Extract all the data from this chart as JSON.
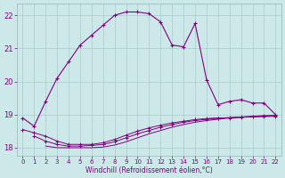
{
  "xlabel": "Windchill (Refroidissement éolien,°C)",
  "background_color": "#cce8e8",
  "grid_color": "#aacccc",
  "line_color": "#800080",
  "xlim": [
    -0.5,
    22.5
  ],
  "ylim": [
    17.75,
    22.35
  ],
  "yticks": [
    18,
    19,
    20,
    21,
    22
  ],
  "xticks": [
    0,
    1,
    2,
    3,
    4,
    5,
    6,
    7,
    8,
    9,
    10,
    11,
    12,
    13,
    14,
    15,
    16,
    17,
    18,
    19,
    20,
    21,
    22
  ],
  "line1_x": [
    0,
    1,
    2,
    3,
    4,
    5,
    6,
    7,
    8,
    9,
    10,
    11,
    12,
    13,
    14,
    15,
    16,
    17,
    18,
    19,
    20,
    21,
    22
  ],
  "line1_y": [
    18.9,
    18.65,
    19.4,
    20.1,
    20.6,
    21.1,
    21.4,
    21.7,
    22.0,
    22.1,
    22.1,
    22.05,
    21.8,
    21.1,
    21.05,
    21.75,
    20.05,
    19.3,
    19.4,
    19.45,
    19.35,
    19.35,
    19.0
  ],
  "line2_x": [
    0,
    1,
    2,
    3,
    4,
    5,
    6,
    7,
    8,
    9,
    10,
    11,
    12,
    13,
    14,
    15,
    16,
    17,
    18,
    19,
    20,
    21,
    22
  ],
  "line2_y": [
    18.55,
    18.45,
    18.35,
    18.2,
    18.1,
    18.1,
    18.1,
    18.15,
    18.25,
    18.38,
    18.5,
    18.6,
    18.68,
    18.75,
    18.8,
    18.85,
    18.88,
    18.9,
    18.9,
    18.92,
    18.93,
    18.94,
    18.95
  ],
  "line3_x": [
    1,
    2,
    3,
    4,
    5,
    6,
    7,
    8,
    9,
    10,
    11,
    12,
    13,
    14,
    15,
    16,
    17,
    18,
    19,
    20,
    21,
    22
  ],
  "line3_y": [
    18.35,
    18.2,
    18.1,
    18.05,
    18.05,
    18.07,
    18.1,
    18.18,
    18.3,
    18.42,
    18.52,
    18.62,
    18.7,
    18.77,
    18.82,
    18.86,
    18.89,
    18.91,
    18.93,
    18.95,
    18.97,
    18.97
  ],
  "line4_x": [
    2,
    3,
    4,
    5,
    6,
    7,
    8,
    9,
    10,
    11,
    12,
    13,
    14,
    15,
    16,
    17,
    18,
    19,
    20,
    21,
    22
  ],
  "line4_y": [
    18.05,
    18.0,
    18.0,
    18.0,
    18.0,
    18.02,
    18.08,
    18.18,
    18.3,
    18.42,
    18.52,
    18.62,
    18.7,
    18.77,
    18.82,
    18.86,
    18.9,
    18.92,
    18.94,
    18.96,
    18.97
  ]
}
